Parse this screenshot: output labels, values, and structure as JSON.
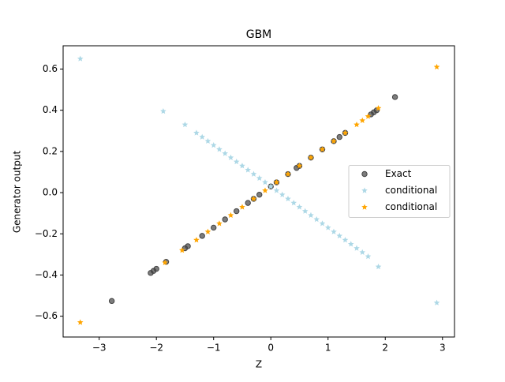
{
  "chart_data": {
    "type": "scatter",
    "title": "GBM",
    "x_label": "Z",
    "y_label": "Generator output",
    "xlim": [
      -3.63,
      3.21
    ],
    "ylim": [
      -0.701,
      0.713
    ],
    "xticks": [
      {
        "value": -3,
        "label": "−3"
      },
      {
        "value": -2,
        "label": "−2"
      },
      {
        "value": -1,
        "label": "−1"
      },
      0,
      1,
      2,
      3
    ],
    "yticks": [
      {
        "value": -0.6,
        "label": "−0.6"
      },
      {
        "value": -0.4,
        "label": "−0.4"
      },
      {
        "value": -0.2,
        "label": "−0.2"
      },
      {
        "value": 0,
        "label": "0.0"
      },
      0.2,
      0.4,
      0.6
    ],
    "legend_position": "center right",
    "series": [
      {
        "name": "Exact",
        "color": "#444444",
        "marker": "circle",
        "x": [
          -2.78,
          -2.1,
          -2.05,
          -2.0,
          -1.83,
          -1.5,
          -1.45,
          -1.2,
          -1.0,
          -0.8,
          -0.6,
          -0.4,
          -0.3,
          -0.2,
          0,
          0.1,
          0.3,
          0.45,
          0.5,
          0.7,
          0.9,
          1.1,
          1.2,
          1.3,
          1.75,
          1.8,
          1.85,
          2.17
        ],
        "values": [
          -0.526,
          -0.39,
          -0.38,
          -0.37,
          -0.336,
          -0.27,
          -0.26,
          -0.21,
          -0.17,
          -0.13,
          -0.09,
          -0.05,
          -0.03,
          -0.01,
          0.03,
          0.05,
          0.09,
          0.12,
          0.13,
          0.17,
          0.21,
          0.25,
          0.27,
          0.29,
          0.38,
          0.39,
          0.4,
          0.464
        ]
      },
      {
        "name": "conditional",
        "color": "#add8e6",
        "marker": "star",
        "x": [
          -3.33,
          -1.88,
          -1.5,
          -1.3,
          -1.2,
          -1.1,
          -1.0,
          -0.9,
          -0.8,
          -0.7,
          -0.6,
          -0.5,
          -0.4,
          -0.3,
          -0.2,
          -0.1,
          0,
          0.1,
          0.2,
          0.3,
          0.4,
          0.5,
          0.6,
          0.7,
          0.8,
          0.9,
          1.0,
          1.1,
          1.2,
          1.3,
          1.4,
          1.5,
          1.6,
          1.7,
          1.88,
          2.9
        ],
        "values": [
          0.65,
          0.395,
          0.33,
          0.29,
          0.27,
          0.25,
          0.23,
          0.21,
          0.19,
          0.17,
          0.15,
          0.13,
          0.11,
          0.09,
          0.07,
          0.05,
          0.03,
          0.01,
          -0.01,
          -0.03,
          -0.05,
          -0.07,
          -0.09,
          -0.11,
          -0.13,
          -0.15,
          -0.17,
          -0.19,
          -0.21,
          -0.23,
          -0.25,
          -0.27,
          -0.29,
          -0.31,
          -0.36,
          -0.535
        ]
      },
      {
        "name": "conditional",
        "color": "#ffa500",
        "marker": "star",
        "x": [
          -3.33,
          -1.85,
          -1.55,
          -1.3,
          -1.1,
          -0.9,
          -0.7,
          -0.5,
          -0.3,
          -0.1,
          0.1,
          0.3,
          0.5,
          0.7,
          0.9,
          1.1,
          1.3,
          1.5,
          1.6,
          1.7,
          1.88,
          2.9
        ],
        "values": [
          -0.63,
          -0.34,
          -0.28,
          -0.23,
          -0.19,
          -0.15,
          -0.11,
          -0.07,
          -0.03,
          0.01,
          0.05,
          0.09,
          0.13,
          0.17,
          0.21,
          0.25,
          0.29,
          0.33,
          0.35,
          0.37,
          0.41,
          0.61
        ]
      }
    ]
  }
}
